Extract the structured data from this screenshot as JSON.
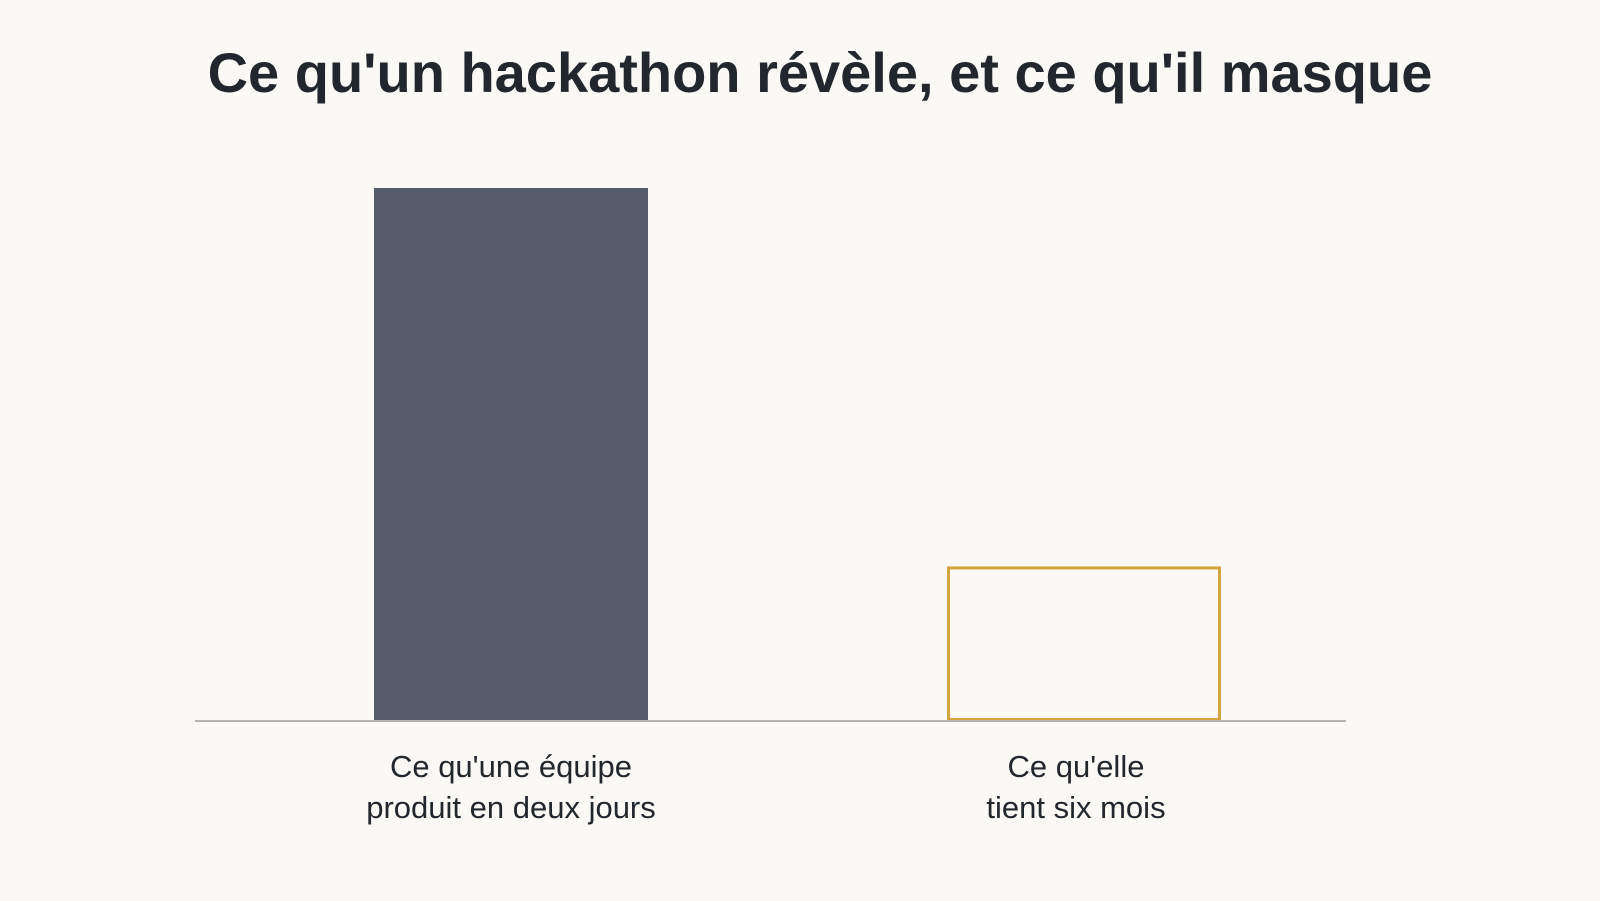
{
  "chart_data": {
    "type": "bar",
    "title": "Ce qu'un hackathon révèle, et ce qu'il masque",
    "categories": [
      "Ce qu'une équipe\nproduit en deux jours",
      "Ce qu'elle\ntient six mois"
    ],
    "values": [
      100,
      29
    ],
    "colors": [
      "#545d68",
      "#d4a43c"
    ],
    "outlined": [
      false,
      true
    ],
    "ylim": [
      0,
      100
    ]
  }
}
